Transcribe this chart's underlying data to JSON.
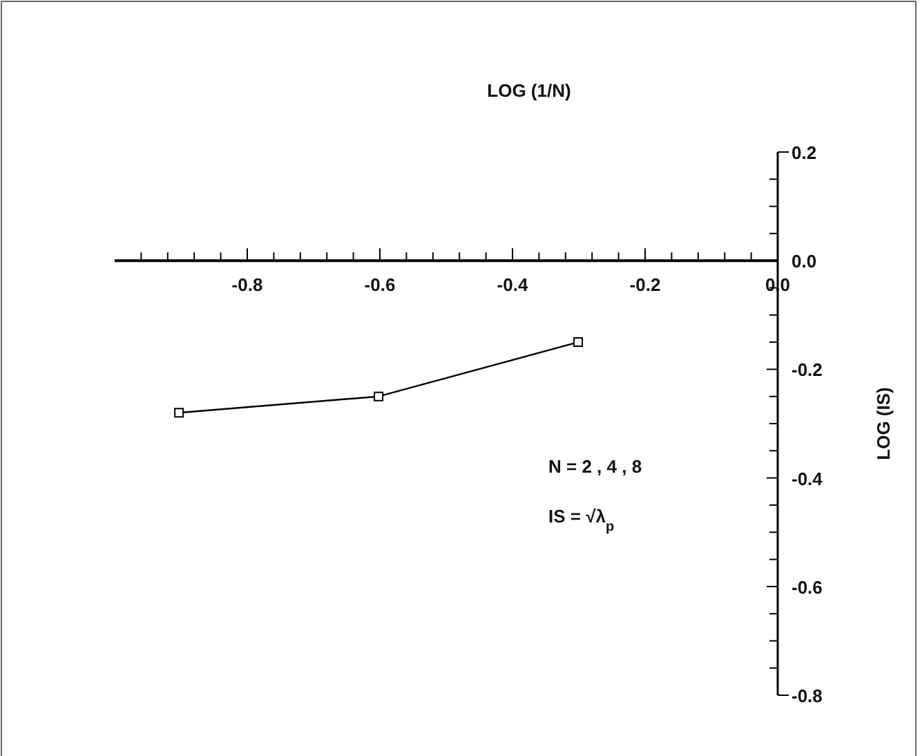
{
  "chart_data": {
    "type": "line",
    "xlabel": "LOG (1/N)",
    "ylabel": "LOG (IS)",
    "x": [
      -0.903,
      -0.602,
      -0.301
    ],
    "series": [
      {
        "color": "#000000",
        "values": [
          -0.28,
          -0.25,
          -0.15
        ]
      }
    ],
    "marker": "square",
    "line_style": "solid",
    "grid": false,
    "xlim": [
      -1.0,
      0.0
    ],
    "xticks": [
      {
        "value": -0.96,
        "label": null
      },
      {
        "value": -0.92,
        "label": null
      },
      {
        "value": -0.88,
        "label": null
      },
      {
        "value": -0.84,
        "label": null
      },
      {
        "value": -0.8,
        "label": "-0.8"
      },
      {
        "value": -0.76,
        "label": null
      },
      {
        "value": -0.72,
        "label": null
      },
      {
        "value": -0.68,
        "label": null
      },
      {
        "value": -0.64,
        "label": null
      },
      {
        "value": -0.6,
        "label": "-0.6"
      },
      {
        "value": -0.56,
        "label": null
      },
      {
        "value": -0.52,
        "label": null
      },
      {
        "value": -0.48,
        "label": null
      },
      {
        "value": -0.44,
        "label": null
      },
      {
        "value": -0.4,
        "label": "-0.4"
      },
      {
        "value": -0.36,
        "label": null
      },
      {
        "value": -0.32,
        "label": null
      },
      {
        "value": -0.28,
        "label": null
      },
      {
        "value": -0.24,
        "label": null
      },
      {
        "value": -0.2,
        "label": "-0.2"
      },
      {
        "value": -0.16,
        "label": null
      },
      {
        "value": -0.12,
        "label": null
      },
      {
        "value": -0.08,
        "label": null
      },
      {
        "value": -0.04,
        "label": null
      },
      {
        "value": 0.0,
        "label": "0.0"
      }
    ],
    "ylim": [
      -0.8,
      0.2
    ],
    "yticks": [
      {
        "value": 0.2,
        "label": "0.2"
      },
      {
        "value": 0.15,
        "label": null
      },
      {
        "value": 0.1,
        "label": null
      },
      {
        "value": 0.05,
        "label": null
      },
      {
        "value": 0.0,
        "label": "0.0"
      },
      {
        "value": -0.05,
        "label": null
      },
      {
        "value": -0.1,
        "label": null
      },
      {
        "value": -0.15,
        "label": null
      },
      {
        "value": -0.2,
        "label": "-0.2"
      },
      {
        "value": -0.25,
        "label": null
      },
      {
        "value": -0.3,
        "label": null
      },
      {
        "value": -0.35,
        "label": null
      },
      {
        "value": -0.4,
        "label": "-0.4"
      },
      {
        "value": -0.45,
        "label": null
      },
      {
        "value": -0.5,
        "label": null
      },
      {
        "value": -0.55,
        "label": null
      },
      {
        "value": -0.6,
        "label": "-0.6"
      },
      {
        "value": -0.65,
        "label": null
      },
      {
        "value": -0.7,
        "label": null
      },
      {
        "value": -0.75,
        "label": null
      },
      {
        "value": -0.8,
        "label": "-0.8"
      }
    ],
    "annotations": [
      "N = 2 , 4 , 8",
      "IS = √λ$_{p}$"
    ]
  }
}
